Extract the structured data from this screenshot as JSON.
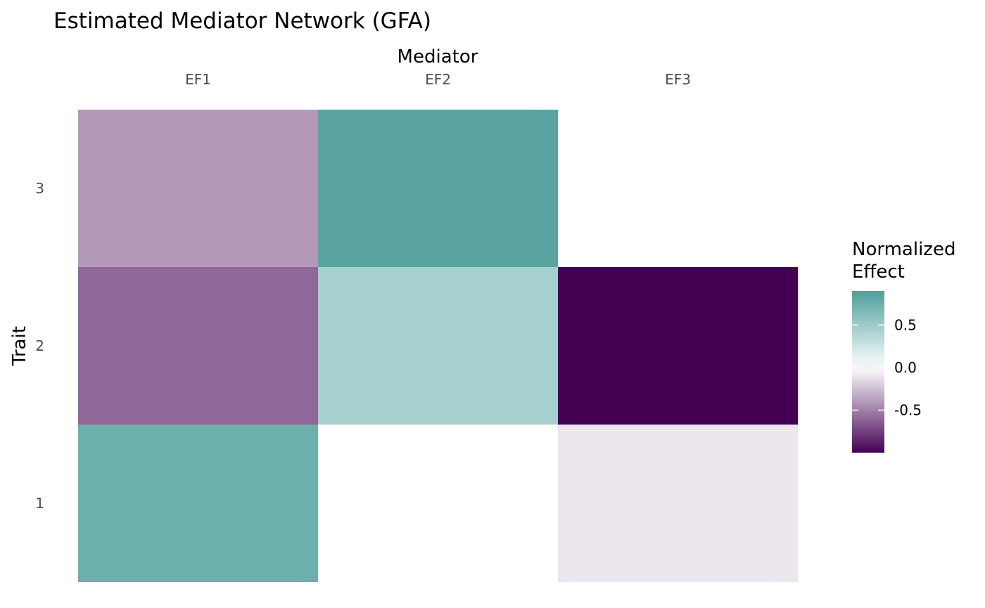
{
  "chart_data": {
    "type": "heatmap",
    "title": "Estimated Mediator Network (GFA)",
    "xlabel": "Mediator",
    "ylabel": "Trait",
    "x_categories": [
      "EF1",
      "EF2",
      "EF3"
    ],
    "y_categories": [
      "1",
      "2",
      "3"
    ],
    "x_axis_position": "top",
    "values": [
      {
        "x": "EF1",
        "y": "3",
        "value": -0.4
      },
      {
        "x": "EF2",
        "y": "3",
        "value": 0.85
      },
      {
        "x": "EF3",
        "y": "3",
        "value": 0.0
      },
      {
        "x": "EF1",
        "y": "2",
        "value": -0.6
      },
      {
        "x": "EF2",
        "y": "2",
        "value": 0.45
      },
      {
        "x": "EF3",
        "y": "2",
        "value": -1.0
      },
      {
        "x": "EF1",
        "y": "1",
        "value": 0.75
      },
      {
        "x": "EF2",
        "y": "1",
        "value": 0.0
      },
      {
        "x": "EF3",
        "y": "1",
        "value": -0.1
      }
    ],
    "legend": {
      "title_lines": [
        "Normalized",
        "Effect"
      ],
      "ticks": [
        0.5,
        0.0,
        -0.5
      ],
      "tick_labels": [
        "0.5",
        "0.0",
        "-0.5"
      ],
      "range": [
        -1.0,
        0.9
      ],
      "placement": "right"
    },
    "colors": {
      "negative": "#440154",
      "mid": "#ffffff",
      "positive": "#4f9f9b",
      "neg_light": "#b49ab9",
      "pos_light": "#95c3be"
    },
    "grid": false
  }
}
